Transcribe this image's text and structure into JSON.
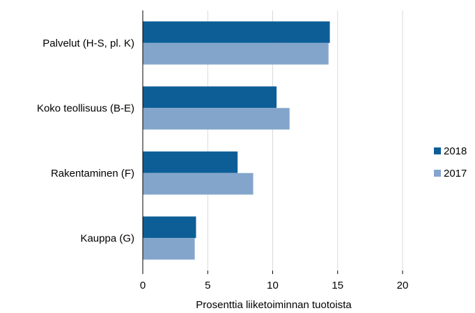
{
  "chart_data": {
    "type": "bar",
    "orientation": "horizontal",
    "categories": [
      "Palvelut (H-S, pl. K)",
      "Koko teollisuus (B-E)",
      "Rakentaminen (F)",
      "Kauppa (G)"
    ],
    "series": [
      {
        "name": "2018",
        "color": "#0d5e97",
        "values": [
          14.4,
          10.3,
          7.3,
          4.1
        ]
      },
      {
        "name": "2017",
        "color": "#84a5cb",
        "values": [
          14.3,
          11.3,
          8.5,
          4.0
        ]
      }
    ],
    "xlabel": "Prosenttia liiketoiminnan tuotoista",
    "ylabel": "",
    "xlim": [
      0,
      20
    ],
    "xticks": [
      "0",
      "5",
      "10",
      "15",
      "20"
    ],
    "grid": "vertical",
    "legend_position": "right"
  }
}
